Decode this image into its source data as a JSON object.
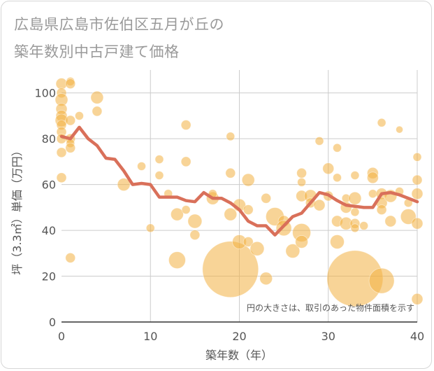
{
  "chart_data": {
    "type": "scatter",
    "title_line1": "広島県広島市佐伯区五月が丘の",
    "title_line2": "築年数別中古戸建て価格",
    "xlabel": "築年数（年）",
    "ylabel": "坪（3.3㎡）単価（万円）",
    "note": "円の大きさは、取引のあった物件面積を示す",
    "xlim": [
      0,
      40
    ],
    "ylim": [
      0,
      110
    ],
    "xticks": [
      "0",
      "10",
      "20",
      "30",
      "40"
    ],
    "yticks": [
      "0",
      "20",
      "40",
      "60",
      "80",
      "100"
    ],
    "xtick_values": [
      0,
      10,
      20,
      30,
      40
    ],
    "ytick_values": [
      0,
      20,
      40,
      60,
      80,
      100
    ],
    "grid": true,
    "colors": {
      "bubble": "#f2b041",
      "line": "#d9705a",
      "grid": "#cccccc"
    },
    "trend_line": {
      "x": [
        0,
        1,
        2,
        3,
        4,
        5,
        6,
        7,
        8,
        9,
        10,
        11,
        12,
        13,
        14,
        15,
        16,
        17,
        18,
        19,
        20,
        21,
        22,
        23,
        24,
        25,
        26,
        27,
        28,
        29,
        30,
        31,
        32,
        33,
        34,
        35,
        36,
        37,
        38,
        39,
        40
      ],
      "y": [
        81,
        80,
        85,
        80,
        77,
        71.5,
        71,
        66,
        60,
        60.5,
        60,
        54.5,
        54.5,
        54.5,
        53,
        52.5,
        56.5,
        54,
        54,
        52,
        49,
        44,
        42,
        42,
        38,
        42,
        46,
        47.5,
        52,
        56.5,
        55.5,
        53,
        51,
        50.5,
        50,
        50,
        56,
        56.5,
        55.5,
        54,
        52.5
      ]
    },
    "points": [
      {
        "x": 0,
        "y": 104,
        "size": 8
      },
      {
        "x": 0,
        "y": 100,
        "size": 7
      },
      {
        "x": 0,
        "y": 97,
        "size": 9
      },
      {
        "x": 0,
        "y": 93,
        "size": 8
      },
      {
        "x": 0,
        "y": 90,
        "size": 8
      },
      {
        "x": 0,
        "y": 88,
        "size": 9
      },
      {
        "x": 0,
        "y": 86,
        "size": 7
      },
      {
        "x": 0,
        "y": 83,
        "size": 7
      },
      {
        "x": 0,
        "y": 80,
        "size": 7
      },
      {
        "x": 0,
        "y": 74,
        "size": 7
      },
      {
        "x": 0,
        "y": 63,
        "size": 7
      },
      {
        "x": 1,
        "y": 105,
        "size": 6
      },
      {
        "x": 1,
        "y": 104,
        "size": 7
      },
      {
        "x": 1,
        "y": 88,
        "size": 7
      },
      {
        "x": 1,
        "y": 80,
        "size": 7
      },
      {
        "x": 1,
        "y": 78,
        "size": 6
      },
      {
        "x": 1,
        "y": 76,
        "size": 7
      },
      {
        "x": 1,
        "y": 28,
        "size": 7
      },
      {
        "x": 2,
        "y": 90,
        "size": 6
      },
      {
        "x": 4,
        "y": 98,
        "size": 9
      },
      {
        "x": 4,
        "y": 92,
        "size": 7
      },
      {
        "x": 7,
        "y": 60,
        "size": 9
      },
      {
        "x": 9,
        "y": 68,
        "size": 6
      },
      {
        "x": 10,
        "y": 41,
        "size": 6
      },
      {
        "x": 11,
        "y": 71,
        "size": 6
      },
      {
        "x": 11,
        "y": 64,
        "size": 6
      },
      {
        "x": 12,
        "y": 56,
        "size": 6
      },
      {
        "x": 13,
        "y": 47,
        "size": 9
      },
      {
        "x": 13,
        "y": 27,
        "size": 12
      },
      {
        "x": 14,
        "y": 86,
        "size": 7
      },
      {
        "x": 14,
        "y": 70,
        "size": 7
      },
      {
        "x": 14,
        "y": 49,
        "size": 6
      },
      {
        "x": 15,
        "y": 44,
        "size": 10
      },
      {
        "x": 15,
        "y": 38,
        "size": 7
      },
      {
        "x": 17,
        "y": 54,
        "size": 9
      },
      {
        "x": 17,
        "y": 56,
        "size": 6
      },
      {
        "x": 19,
        "y": 81,
        "size": 6
      },
      {
        "x": 19,
        "y": 65,
        "size": 7
      },
      {
        "x": 19,
        "y": 47,
        "size": 9
      },
      {
        "x": 19,
        "y": 23,
        "size": 40
      },
      {
        "x": 20,
        "y": 51,
        "size": 9
      },
      {
        "x": 20,
        "y": 35,
        "size": 10
      },
      {
        "x": 21,
        "y": 62,
        "size": 9
      },
      {
        "x": 21,
        "y": 49,
        "size": 7
      },
      {
        "x": 21,
        "y": 35,
        "size": 7
      },
      {
        "x": 22,
        "y": 32,
        "size": 10
      },
      {
        "x": 23,
        "y": 54,
        "size": 7
      },
      {
        "x": 23,
        "y": 19,
        "size": 9
      },
      {
        "x": 24,
        "y": 46,
        "size": 13
      },
      {
        "x": 25,
        "y": 44,
        "size": 8
      },
      {
        "x": 25,
        "y": 41,
        "size": 11
      },
      {
        "x": 26,
        "y": 31,
        "size": 10
      },
      {
        "x": 27,
        "y": 65,
        "size": 7
      },
      {
        "x": 27,
        "y": 61,
        "size": 6
      },
      {
        "x": 27,
        "y": 55,
        "size": 8
      },
      {
        "x": 27,
        "y": 39,
        "size": 13
      },
      {
        "x": 27,
        "y": 35,
        "size": 9
      },
      {
        "x": 28,
        "y": 55,
        "size": 9
      },
      {
        "x": 28,
        "y": 52,
        "size": 7
      },
      {
        "x": 29,
        "y": 79,
        "size": 6
      },
      {
        "x": 29,
        "y": 51,
        "size": 8
      },
      {
        "x": 30,
        "y": 67,
        "size": 8
      },
      {
        "x": 30,
        "y": 55,
        "size": 7
      },
      {
        "x": 31,
        "y": 76,
        "size": 6
      },
      {
        "x": 31,
        "y": 63,
        "size": 6
      },
      {
        "x": 31,
        "y": 44,
        "size": 8
      },
      {
        "x": 31,
        "y": 35,
        "size": 10
      },
      {
        "x": 32,
        "y": 54,
        "size": 6
      },
      {
        "x": 32,
        "y": 50,
        "size": 8
      },
      {
        "x": 32,
        "y": 43,
        "size": 9
      },
      {
        "x": 33,
        "y": 64,
        "size": 6
      },
      {
        "x": 33,
        "y": 54,
        "size": 9
      },
      {
        "x": 33,
        "y": 48,
        "size": 6
      },
      {
        "x": 33,
        "y": 43,
        "size": 7
      },
      {
        "x": 33,
        "y": 41,
        "size": 6
      },
      {
        "x": 33,
        "y": 19,
        "size": 40
      },
      {
        "x": 34,
        "y": 42,
        "size": 6
      },
      {
        "x": 35,
        "y": 65,
        "size": 8
      },
      {
        "x": 35,
        "y": 63,
        "size": 8
      },
      {
        "x": 35,
        "y": 56,
        "size": 6
      },
      {
        "x": 36,
        "y": 87,
        "size": 6
      },
      {
        "x": 36,
        "y": 56,
        "size": 8
      },
      {
        "x": 36,
        "y": 52,
        "size": 8
      },
      {
        "x": 36,
        "y": 49,
        "size": 7
      },
      {
        "x": 36,
        "y": 18,
        "size": 18
      },
      {
        "x": 37,
        "y": 55,
        "size": 9
      },
      {
        "x": 37,
        "y": 44,
        "size": 8
      },
      {
        "x": 38,
        "y": 84,
        "size": 5
      },
      {
        "x": 38,
        "y": 57,
        "size": 6
      },
      {
        "x": 39,
        "y": 52,
        "size": 6
      },
      {
        "x": 39,
        "y": 46,
        "size": 11
      },
      {
        "x": 40,
        "y": 72,
        "size": 6
      },
      {
        "x": 40,
        "y": 62,
        "size": 7
      },
      {
        "x": 40,
        "y": 56,
        "size": 8
      },
      {
        "x": 40,
        "y": 43,
        "size": 8
      },
      {
        "x": 40,
        "y": 10,
        "size": 8
      }
    ]
  }
}
